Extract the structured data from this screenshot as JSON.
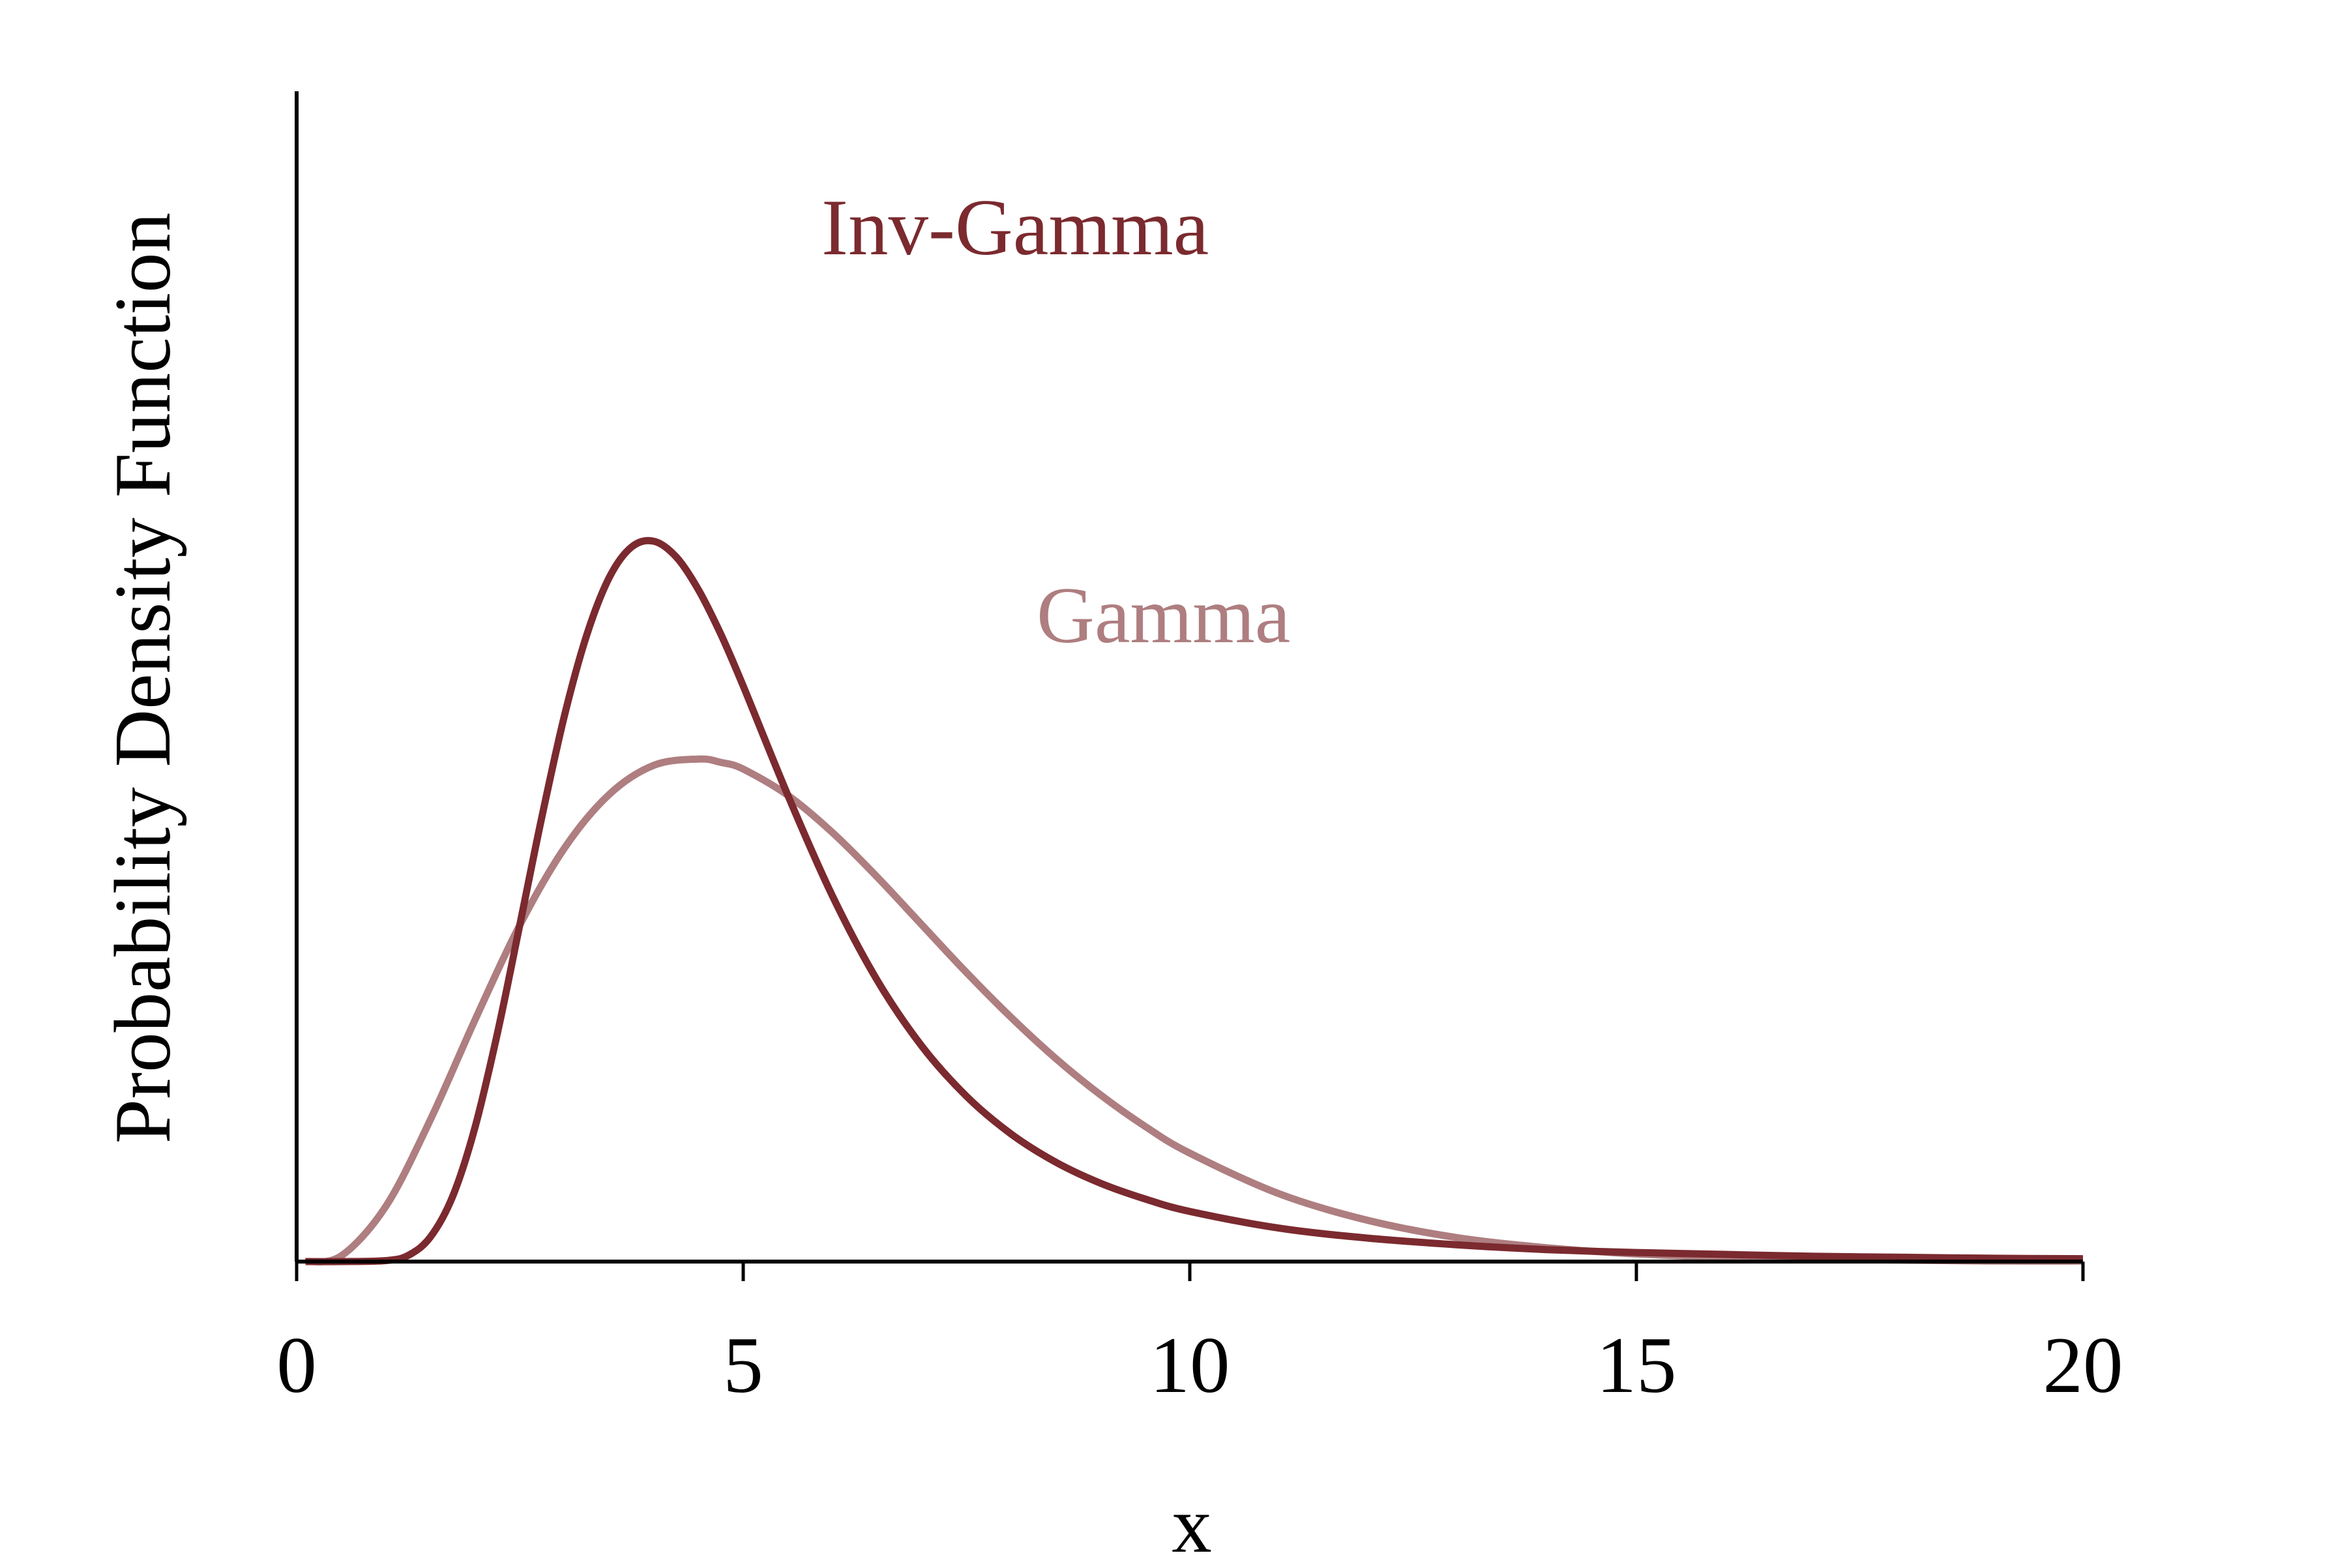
{
  "chart_data": {
    "type": "line",
    "title": "",
    "xlabel": "x",
    "ylabel": "Probability Density Function",
    "xlim": [
      0,
      20
    ],
    "ylim": [
      0,
      0.245
    ],
    "grid": false,
    "legend": "inline labels",
    "x_ticks": [
      0,
      5,
      10,
      15,
      20
    ],
    "x_tick_labels": [
      "0",
      "5",
      "10",
      "15",
      "20"
    ],
    "y_ticks_shown": false,
    "colors": {
      "inv_gamma": "#7b2a2f",
      "gamma": "#ae7e80",
      "axis": "#000000"
    },
    "series": [
      {
        "name": "Inv-Gamma",
        "color_key": "inv_gamma",
        "x": [
          0.1,
          0.5,
          1.0,
          1.25,
          1.5,
          1.75,
          2.0,
          2.25,
          2.5,
          2.75,
          3.0,
          3.25,
          3.5,
          3.75,
          4.0,
          4.25,
          4.5,
          4.75,
          5.0,
          5.5,
          6.0,
          6.5,
          7.0,
          7.5,
          8.0,
          8.5,
          9.0,
          9.5,
          10.0,
          11.0,
          12.0,
          13.0,
          14.0,
          15.0,
          16.0,
          17.0,
          18.0,
          19.0,
          20.0
        ],
        "y": [
          0.0,
          0.0,
          0.0002,
          0.0013,
          0.0052,
          0.0138,
          0.0283,
          0.048,
          0.0706,
          0.0935,
          0.1144,
          0.1313,
          0.1432,
          0.1496,
          0.1508,
          0.1475,
          0.1406,
          0.1313,
          0.1205,
          0.0976,
          0.0765,
          0.0589,
          0.0451,
          0.0346,
          0.0267,
          0.0208,
          0.0164,
          0.0131,
          0.0105,
          0.007,
          0.0049,
          0.0035,
          0.0025,
          0.0019,
          0.0015,
          0.0011,
          0.0009,
          0.0007,
          0.0006
        ]
      },
      {
        "name": "Gamma",
        "color_key": "gamma",
        "x": [
          0.1,
          0.5,
          1.0,
          1.5,
          2.0,
          2.5,
          3.0,
          3.5,
          4.0,
          4.5,
          4.75,
          5.0,
          5.5,
          6.0,
          6.5,
          7.0,
          7.5,
          8.0,
          8.5,
          9.0,
          9.5,
          10.0,
          11.0,
          12.0,
          13.0,
          14.0,
          15.0,
          16.0,
          17.0,
          18.0,
          19.0,
          20.0
        ],
        "y": [
          0.0,
          0.0012,
          0.0116,
          0.0298,
          0.0507,
          0.0705,
          0.0866,
          0.0978,
          0.1039,
          0.1052,
          0.1045,
          0.1031,
          0.0976,
          0.0898,
          0.0805,
          0.0705,
          0.0605,
          0.0511,
          0.0425,
          0.0349,
          0.0283,
          0.0227,
          0.0142,
          0.0086,
          0.005,
          0.0029,
          0.0016,
          0.0009,
          0.0005,
          0.0003,
          0.0001,
          0.0001
        ]
      }
    ]
  }
}
